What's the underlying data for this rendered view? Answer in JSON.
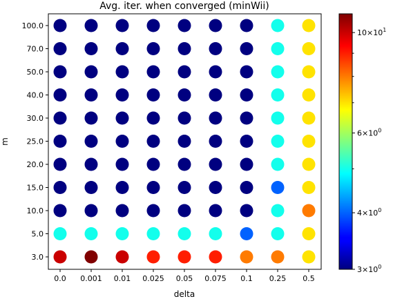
{
  "chart_data": {
    "type": "scatter",
    "title": "Avg. iter. when converged (minWii)",
    "xlabel": "delta",
    "ylabel": "m",
    "x_categories": [
      "0.0",
      "0.001",
      "0.01",
      "0.025",
      "0.05",
      "0.075",
      "0.1",
      "0.25",
      "0.5"
    ],
    "y_categories": [
      "3.0",
      "5.0",
      "10.0",
      "15.0",
      "20.0",
      "25.0",
      "30.0",
      "40.0",
      "50.0",
      "70.0",
      "100.0"
    ],
    "colormap": "jet",
    "color_scale": "log",
    "color_range": [
      3.0,
      11.0
    ],
    "colorbar_ticks": [
      {
        "value": 3,
        "label_base": "3",
        "label_exp": "0"
      },
      {
        "value": 4,
        "label_base": "4",
        "label_exp": "0"
      },
      {
        "value": 6,
        "label_base": "6",
        "label_exp": "0"
      },
      {
        "value": 10,
        "label_base": "10",
        "label_exp": "1"
      }
    ],
    "colorbar_minor_ticks": [
      5,
      7,
      8,
      9
    ],
    "values": [
      [
        10.0,
        11.0,
        10.0,
        9.0,
        9.0,
        9.0,
        8.0,
        8.0,
        7.0
      ],
      [
        5.0,
        5.0,
        5.0,
        5.0,
        5.0,
        5.0,
        4.0,
        5.0,
        7.0
      ],
      [
        3.0,
        3.0,
        3.0,
        3.0,
        3.0,
        3.0,
        3.0,
        5.0,
        8.0
      ],
      [
        3.0,
        3.0,
        3.0,
        3.0,
        3.0,
        3.0,
        3.0,
        4.0,
        7.0
      ],
      [
        3.0,
        3.0,
        3.0,
        3.0,
        3.0,
        3.0,
        3.0,
        5.0,
        7.0
      ],
      [
        3.0,
        3.0,
        3.0,
        3.0,
        3.0,
        3.0,
        3.0,
        5.0,
        7.0
      ],
      [
        3.0,
        3.0,
        3.0,
        3.0,
        3.0,
        3.0,
        3.0,
        5.0,
        7.0
      ],
      [
        3.0,
        3.0,
        3.0,
        3.0,
        3.0,
        3.0,
        3.0,
        5.0,
        7.0
      ],
      [
        3.0,
        3.0,
        3.0,
        3.0,
        3.0,
        3.0,
        3.0,
        5.0,
        7.0
      ],
      [
        3.0,
        3.0,
        3.0,
        3.0,
        3.0,
        3.0,
        3.0,
        5.0,
        7.0
      ],
      [
        3.0,
        3.0,
        3.0,
        3.0,
        3.0,
        3.0,
        3.0,
        5.0,
        7.0
      ]
    ]
  }
}
